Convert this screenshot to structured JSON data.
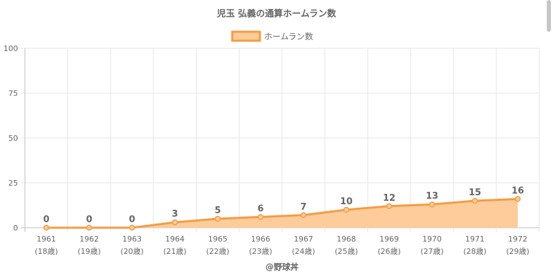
{
  "chart_data": {
    "type": "area",
    "title": "児玉 弘義の通算ホームラン数",
    "categories": [
      "1961",
      "1962",
      "1963",
      "1964",
      "1965",
      "1966",
      "1967",
      "1968",
      "1969",
      "1970",
      "1971",
      "1972"
    ],
    "category_sublabels": [
      "(18歳)",
      "(19歳)",
      "(20歳)",
      "(21歳)",
      "(22歳)",
      "(23歳)",
      "(24歳)",
      "(25歳)",
      "(26歳)",
      "(27歳)",
      "(28歳)",
      "(29歳)"
    ],
    "series": [
      {
        "name": "ホームラン数",
        "values": [
          0,
          0,
          0,
          3,
          5,
          6,
          7,
          10,
          12,
          13,
          15,
          16
        ]
      }
    ],
    "ylim": [
      0,
      100
    ],
    "yticks": [
      0,
      25,
      50,
      75,
      100
    ],
    "grid": true,
    "legend": "top-center",
    "data_labels": true,
    "credit": "@野球丼",
    "colors": {
      "line": "#f59b44",
      "fill": "#fdcc9a",
      "grid": "#e6e6e6",
      "axis": "#bdbdbd",
      "text": "#666666"
    }
  }
}
